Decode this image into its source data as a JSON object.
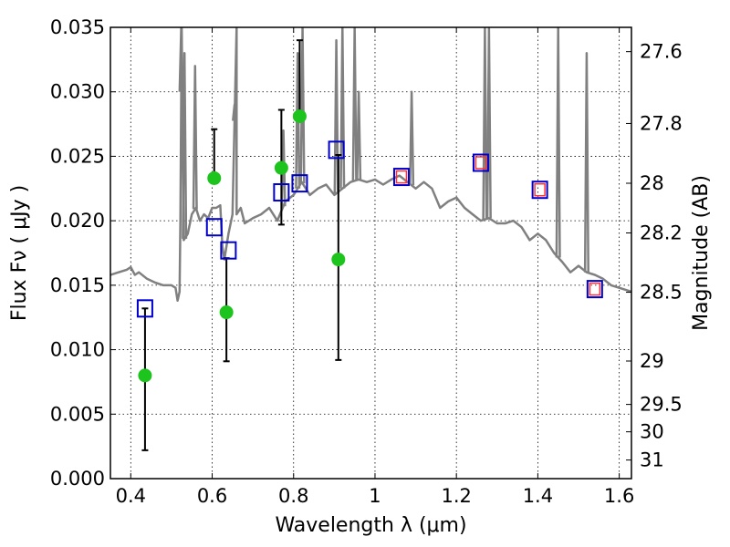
{
  "chart_data": {
    "type": "scatter",
    "xlabel": "Wavelength  λ (μm)",
    "ylabel": "Flux  Fν  ( μJy )",
    "y2label": "Magnitude (AB)",
    "xlim": [
      0.35,
      1.63
    ],
    "ylim": [
      0.0,
      0.035
    ],
    "grid": true,
    "x_ticks": [
      0.4,
      0.6,
      0.8,
      1.0,
      1.2,
      1.4,
      1.6
    ],
    "x_tick_labels": [
      "0.4",
      "0.6",
      "0.8",
      "1",
      "1.2",
      "1.4",
      "1.6"
    ],
    "y_ticks": [
      0.0,
      0.005,
      0.01,
      0.015,
      0.02,
      0.025,
      0.03,
      0.035
    ],
    "y_tick_labels": [
      "0.000",
      "0.005",
      "0.010",
      "0.015",
      "0.020",
      "0.025",
      "0.030",
      "0.035"
    ],
    "mag_ticks": [
      27.6,
      27.8,
      28.0,
      28.2,
      28.5,
      29.0,
      29.5,
      30.0,
      31.0
    ],
    "mag_tick_labels": [
      "27.6",
      "27.8",
      "28",
      "28.2",
      "28.5",
      "29",
      "29.5",
      "30",
      "31"
    ],
    "series": [
      {
        "name": "Model spectrum",
        "kind": "line",
        "color": "#808080",
        "x": [
          0.35,
          0.37,
          0.39,
          0.4,
          0.41,
          0.42,
          0.44,
          0.46,
          0.48,
          0.5,
          0.51,
          0.515,
          0.52,
          0.522,
          0.525,
          0.53,
          0.54,
          0.55,
          0.56,
          0.57,
          0.58,
          0.59,
          0.6,
          0.61,
          0.62,
          0.625,
          0.63,
          0.64,
          0.65,
          0.66,
          0.66,
          0.67,
          0.68,
          0.7,
          0.72,
          0.74,
          0.76,
          0.78,
          0.8,
          0.82,
          0.84,
          0.86,
          0.88,
          0.9,
          0.92,
          0.94,
          0.96,
          0.98,
          1.0,
          1.02,
          1.04,
          1.06,
          1.08,
          1.1,
          1.12,
          1.14,
          1.16,
          1.18,
          1.2,
          1.22,
          1.24,
          1.26,
          1.28,
          1.3,
          1.32,
          1.34,
          1.36,
          1.38,
          1.4,
          1.42,
          1.44,
          1.46,
          1.48,
          1.5,
          1.52,
          1.54,
          1.56,
          1.58,
          1.6,
          1.63
        ],
        "y": [
          0.0158,
          0.016,
          0.0162,
          0.0164,
          0.0158,
          0.016,
          0.0155,
          0.0152,
          0.015,
          0.015,
          0.0148,
          0.0138,
          0.0145,
          0.02,
          0.035,
          0.0185,
          0.019,
          0.0205,
          0.021,
          0.02,
          0.0205,
          0.0202,
          0.021,
          0.021,
          0.0212,
          0.018,
          0.017,
          0.019,
          0.0205,
          0.035,
          0.0205,
          0.021,
          0.0198,
          0.0202,
          0.0205,
          0.021,
          0.02,
          0.0215,
          0.022,
          0.023,
          0.022,
          0.0225,
          0.0228,
          0.022,
          0.0225,
          0.023,
          0.0232,
          0.023,
          0.0232,
          0.0228,
          0.0232,
          0.0235,
          0.023,
          0.0225,
          0.023,
          0.0225,
          0.021,
          0.0215,
          0.0218,
          0.021,
          0.0205,
          0.02,
          0.0202,
          0.0198,
          0.0198,
          0.02,
          0.0195,
          0.0185,
          0.019,
          0.0185,
          0.0175,
          0.0168,
          0.016,
          0.0165,
          0.016,
          0.0158,
          0.0155,
          0.015,
          0.0148,
          0.0145
        ]
      },
      {
        "name": "Emission line spikes",
        "kind": "spikes",
        "color": "#808080",
        "x": [
          0.524,
          0.532,
          0.558,
          0.655,
          0.775,
          0.81,
          0.822,
          0.905,
          0.92,
          0.95,
          0.96,
          1.09,
          1.27,
          1.28,
          1.45,
          1.52
        ],
        "y": [
          0.035,
          0.033,
          0.032,
          0.029,
          0.027,
          0.033,
          0.035,
          0.034,
          0.035,
          0.035,
          0.03,
          0.03,
          0.035,
          0.035,
          0.035,
          0.033
        ]
      },
      {
        "name": "Green points",
        "kind": "points",
        "color": "#1ec41e",
        "x": [
          0.435,
          0.605,
          0.635,
          0.77,
          0.815,
          0.91
        ],
        "y": [
          0.008,
          0.0233,
          0.0129,
          0.0241,
          0.0281,
          0.017
        ],
        "yerr_low": [
          0.0022,
          null,
          0.0091,
          0.0197,
          null,
          0.0092
        ],
        "yerr_high": [
          0.0132,
          0.0271,
          0.0171,
          0.0286,
          0.034,
          0.0251
        ]
      },
      {
        "name": "Blue squares",
        "kind": "squares",
        "color": "#0000cc",
        "x": [
          0.435,
          0.605,
          0.64,
          0.77,
          0.815,
          0.905,
          1.065,
          1.26,
          1.405,
          1.54
        ],
        "y": [
          0.0132,
          0.0195,
          0.0177,
          0.0222,
          0.0229,
          0.0255,
          0.0234,
          0.0245,
          0.0224,
          0.0147
        ]
      },
      {
        "name": "Red squares",
        "kind": "squares",
        "color": "#ff3333",
        "x": [
          1.065,
          1.26,
          1.405,
          1.54
        ],
        "y": [
          0.0234,
          0.0245,
          0.0224,
          0.0147
        ]
      }
    ]
  }
}
